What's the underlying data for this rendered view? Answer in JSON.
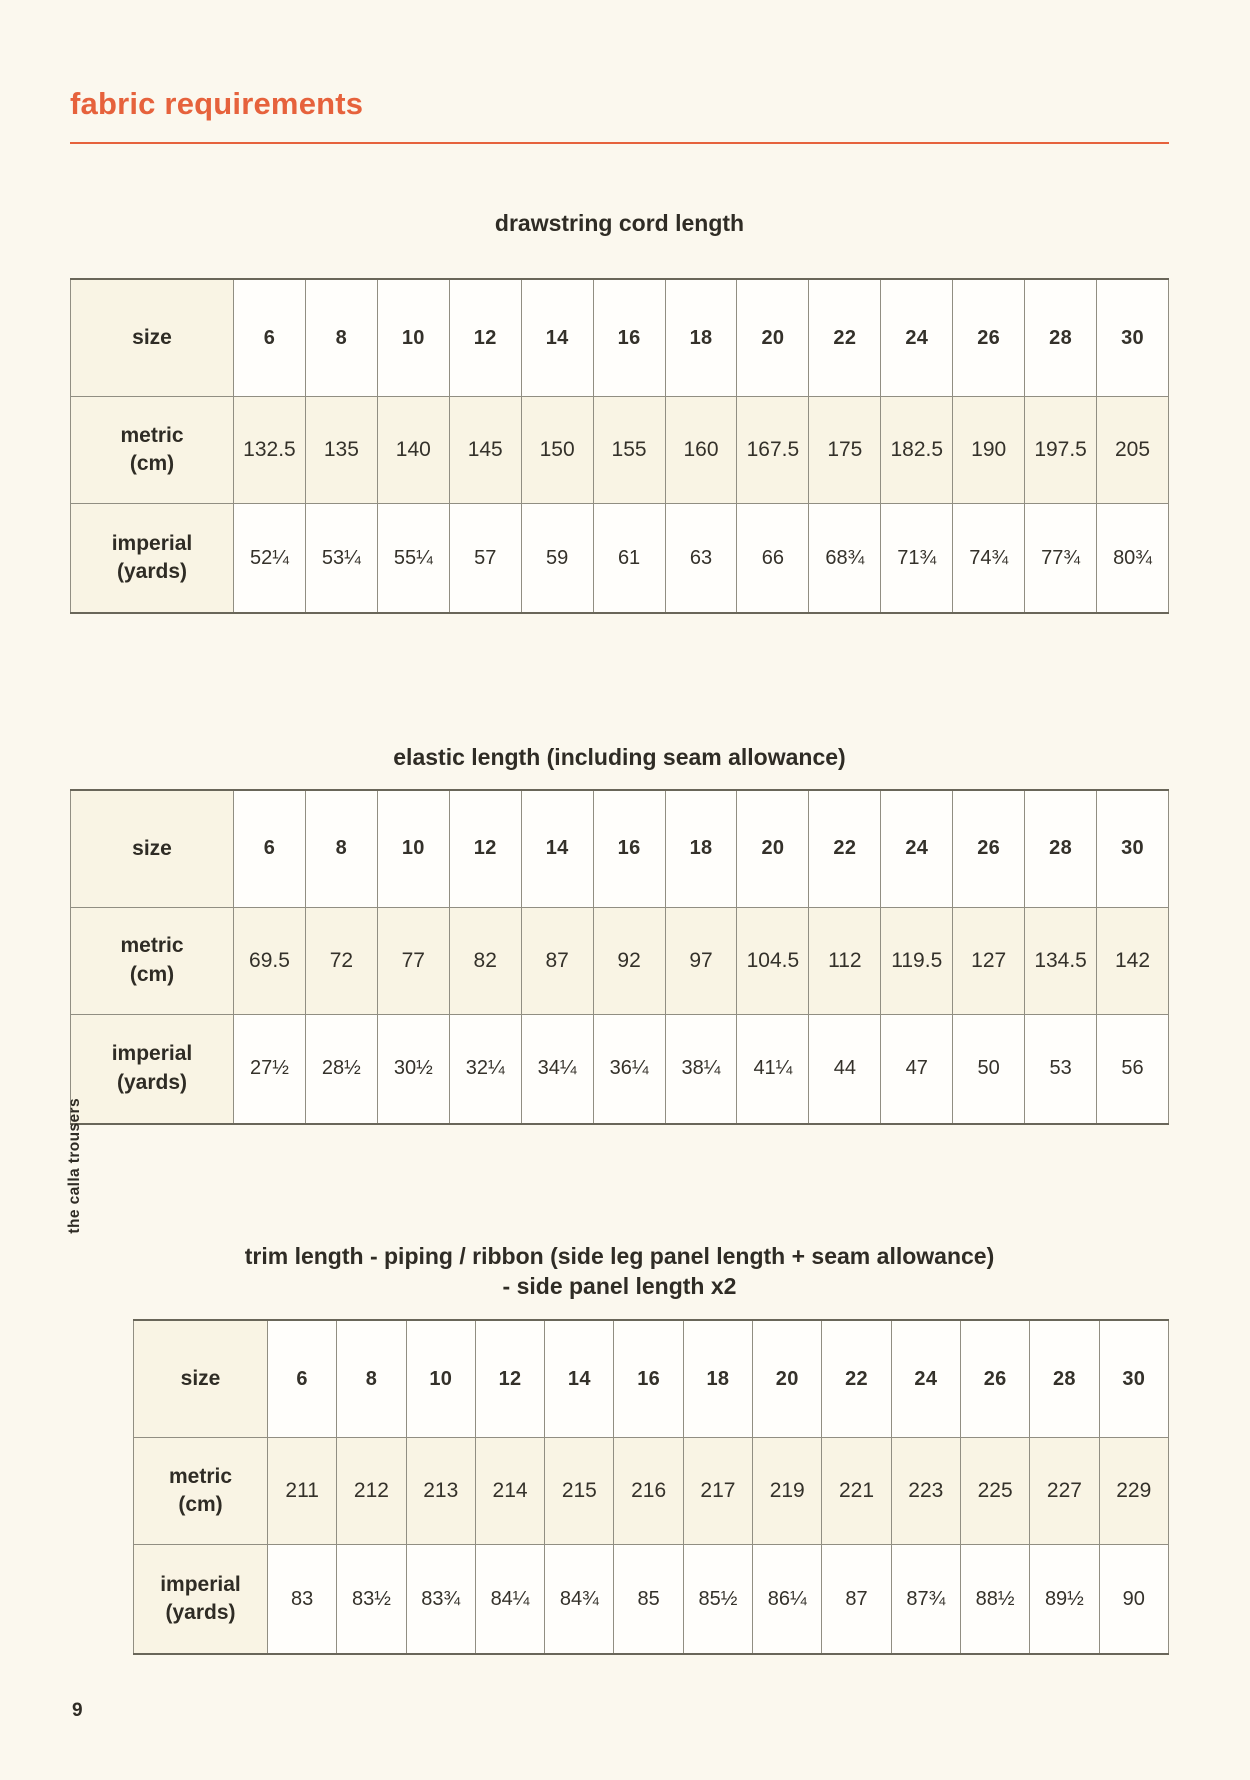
{
  "page": {
    "title": "fabric requirements",
    "side_label": "the calla trousers",
    "page_number": "9",
    "accent_color": "#e6623c"
  },
  "tables": [
    {
      "title_lines": [
        "drawstring cord length"
      ],
      "labels": {
        "size": "size",
        "metric": [
          "metric",
          "(cm)"
        ],
        "imperial": [
          "imperial",
          "(yards)"
        ]
      },
      "sizes": [
        "6",
        "8",
        "10",
        "12",
        "14",
        "16",
        "18",
        "20",
        "22",
        "24",
        "26",
        "28",
        "30"
      ],
      "metric": [
        "132.5",
        "135",
        "140",
        "145",
        "150",
        "155",
        "160",
        "167.5",
        "175",
        "182.5",
        "190",
        "197.5",
        "205"
      ],
      "imperial": [
        "52¼",
        "53¼",
        "55¼",
        "57",
        "59",
        "61",
        "63",
        "66",
        "68¾",
        "71¾",
        "74¾",
        "77¾",
        "80¾"
      ]
    },
    {
      "title_lines": [
        "elastic length (including seam allowance)"
      ],
      "labels": {
        "size": "size",
        "metric": [
          "metric",
          "(cm)"
        ],
        "imperial": [
          "imperial",
          "(yards)"
        ]
      },
      "sizes": [
        "6",
        "8",
        "10",
        "12",
        "14",
        "16",
        "18",
        "20",
        "22",
        "24",
        "26",
        "28",
        "30"
      ],
      "metric": [
        "69.5",
        "72",
        "77",
        "82",
        "87",
        "92",
        "97",
        "104.5",
        "112",
        "119.5",
        "127",
        "134.5",
        "142"
      ],
      "imperial": [
        "27½",
        "28½",
        "30½",
        "32¼",
        "34¼",
        "36¼",
        "38¼",
        "41¼",
        "44",
        "47",
        "50",
        "53",
        "56"
      ]
    },
    {
      "title_lines": [
        "trim length - piping / ribbon (side leg panel length + seam allowance)",
        "- side panel length x2"
      ],
      "labels": {
        "size": "size",
        "metric": [
          "metric",
          "(cm)"
        ],
        "imperial": [
          "imperial",
          "(yards)"
        ]
      },
      "sizes": [
        "6",
        "8",
        "10",
        "12",
        "14",
        "16",
        "18",
        "20",
        "22",
        "24",
        "26",
        "28",
        "30"
      ],
      "metric": [
        "211",
        "212",
        "213",
        "214",
        "215",
        "216",
        "217",
        "219",
        "221",
        "223",
        "225",
        "227",
        "229"
      ],
      "imperial": [
        "83",
        "83½",
        "83¾",
        "84¼",
        "84¾",
        "85",
        "85½",
        "86¼",
        "87",
        "87¾",
        "88½",
        "89½",
        "90"
      ]
    }
  ]
}
